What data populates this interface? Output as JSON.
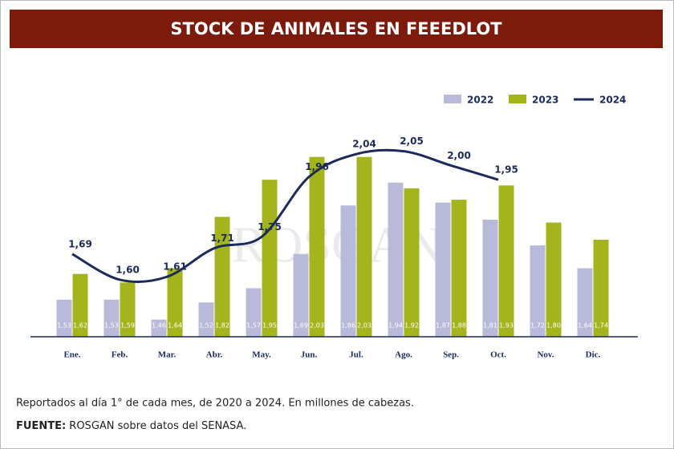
{
  "chart_data": {
    "type": "bar-line",
    "title": "STOCK DE ANIMALES EN FEEEDLOT",
    "watermark": "ROSGAN",
    "categories": [
      "Ene.",
      "Feb.",
      "Mar.",
      "Abr.",
      "May.",
      "Jun.",
      "Jul.",
      "Ago.",
      "Sep.",
      "Oct.",
      "Nov.",
      "Dic."
    ],
    "series": [
      {
        "name": "2022",
        "type": "bar",
        "color": "#b9b9d9",
        "values": [
          1.53,
          1.53,
          1.46,
          1.52,
          1.57,
          1.69,
          1.86,
          1.94,
          1.87,
          1.81,
          1.72,
          1.64
        ],
        "value_labels": [
          "1,53",
          "1,53",
          "1,46",
          "1,52",
          "1,57",
          "1,69",
          "1,86",
          "1,94",
          "1,87",
          "1,81",
          "1,72",
          "1,64"
        ]
      },
      {
        "name": "2023",
        "type": "bar",
        "color": "#a4b41c",
        "values": [
          1.62,
          1.59,
          1.64,
          1.82,
          1.95,
          2.03,
          2.03,
          1.92,
          1.88,
          1.93,
          1.8,
          1.74
        ],
        "value_labels": [
          "1,62",
          "1,59",
          "1,64",
          "1,82",
          "1,95",
          "2,03",
          "2,03",
          "1,92",
          "1,88",
          "1,93",
          "1,80",
          "1,74"
        ]
      },
      {
        "name": "2024",
        "type": "line",
        "color": "#1c2a5c",
        "values": [
          1.69,
          1.6,
          1.61,
          1.71,
          1.75,
          1.96,
          2.04,
          2.05,
          2.0,
          1.95,
          null,
          null
        ],
        "value_labels": [
          "1,69",
          "1,60",
          "1,61",
          "1,71",
          "1,75",
          "1,96",
          "2,04",
          "2,05",
          "2,00",
          "1,95",
          null,
          null
        ]
      }
    ],
    "ylim": [
      1.4,
      2.2
    ],
    "note": "Reportados al día 1° de cada mes, de 2020 a 2024. En millones de cabezas.",
    "source_label": "FUENTE:",
    "source_text": "ROSGAN sobre datos del SENASA."
  }
}
